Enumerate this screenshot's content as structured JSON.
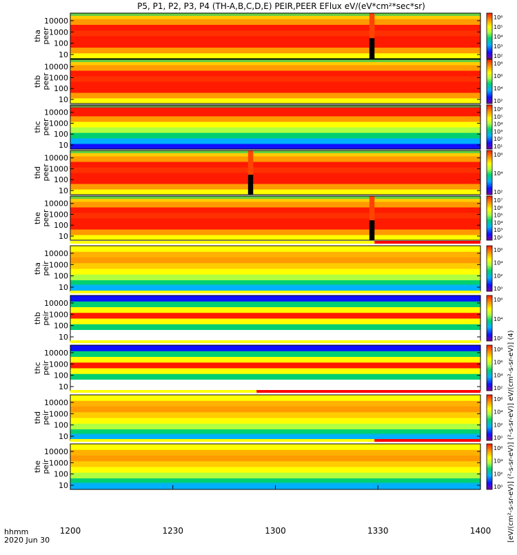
{
  "title": "P5, P1, P2, P3, P4 (TH-A,B,C,D,E) PEIR,PEER EFlux eV/(eV*cm²*sec*sr)",
  "xaxis": {
    "ticks": [
      "1200",
      "1230",
      "1300",
      "1330",
      "1400"
    ],
    "tick_minutes": [
      0,
      30,
      60,
      90,
      120
    ],
    "label_line1": "hhmm",
    "label_line2": "2020 Jun 30"
  },
  "right_label": "[eV/(cm²-s-sr-eV)] (²-s-sr-eV)] (²-s-sr-eV)] eV/(cm²-s-sr-eV)] (4)",
  "chart_data": {
    "type": "heatmap",
    "x_unit": "time (UT, hhmm)",
    "x_range": [
      "1200",
      "1400"
    ],
    "y_scale": "log",
    "y_ticks": [
      "10",
      "100",
      "1000",
      "10000"
    ],
    "y_ticks_omni_ion": [
      "10",
      "100",
      "1000",
      "10000"
    ],
    "colorscale": [
      "#7a00a8",
      "#1010ff",
      "#00b0ff",
      "#00d070",
      "#b0ff40",
      "#ffff00",
      "#ff9a00",
      "#ff1a00"
    ],
    "panels": [
      {
        "label_top": "tha",
        "label_bottom": "peer",
        "cb_ticks": [
          "10⁶",
          "10⁵",
          "10⁴",
          "10³",
          "10²"
        ],
        "data_gap_minutes": [
          [
            87.5,
            89.0
          ]
        ],
        "dominant": "red",
        "status_bar": null
      },
      {
        "label_top": "thb",
        "label_bottom": "peer",
        "cb_ticks": [
          "10⁸",
          "10⁶",
          "10⁴",
          "10²"
        ],
        "data_gap_minutes": [],
        "dominant": "red",
        "status_bar": null
      },
      {
        "label_top": "thc",
        "label_bottom": "peer",
        "cb_ticks": [
          "10⁸",
          "10⁵",
          "10⁴",
          "10³",
          "10²",
          "10¹"
        ],
        "data_gap_minutes": [],
        "dominant": "mixed",
        "status_bar": null
      },
      {
        "label_top": "thd",
        "label_bottom": "peer",
        "cb_ticks": [
          "10⁶",
          "10⁴",
          "10²"
        ],
        "data_gap_minutes": [
          [
            52.0,
            53.5
          ]
        ],
        "dominant": "red",
        "status_bar": null
      },
      {
        "label_top": "the",
        "label_bottom": "peer",
        "cb_ticks": [
          "10⁷",
          "10⁶",
          "10⁵",
          "10⁴",
          "10³",
          "10²"
        ],
        "data_gap_minutes": [
          [
            87.5,
            89.0
          ]
        ],
        "dominant": "red",
        "status_bar": null
      },
      {
        "label_top": "tha",
        "label_bottom": "peir",
        "cb_ticks": [
          "10⁶",
          "10⁴",
          "10²",
          "10⁰"
        ],
        "data_gap_minutes": [],
        "dominant": "orange",
        "status_bar": {
          "yellow_until": 89.0,
          "then": "red"
        }
      },
      {
        "label_top": "thb",
        "label_bottom": "peir",
        "cb_ticks": [
          "10⁶",
          "10⁴",
          "10²"
        ],
        "data_gap_minutes": [],
        "dominant": "band",
        "status_bar": {
          "yellow_until": 120,
          "then": "yellow"
        }
      },
      {
        "label_top": "thc",
        "label_bottom": "peir",
        "cb_ticks": [
          "10⁸",
          "10⁶",
          "10⁴",
          "10²"
        ],
        "data_gap_minutes": [],
        "dominant": "band",
        "status_bar": {
          "yellow_until": 120,
          "then": "yellow"
        }
      },
      {
        "label_top": "thd",
        "label_bottom": "peir",
        "cb_ticks": [
          "10⁶",
          "10⁴",
          "10²",
          "10⁰"
        ],
        "data_gap_minutes": [],
        "dominant": "orange",
        "status_bar": {
          "yellow_until": 54.5,
          "then": "red"
        }
      },
      {
        "label_top": "the",
        "label_bottom": "peir",
        "cb_ticks": [
          "10⁶",
          "10⁴",
          "10²",
          "10⁰"
        ],
        "data_gap_minutes": [],
        "dominant": "orange",
        "status_bar": {
          "yellow_until": 89.0,
          "then": "red"
        }
      }
    ]
  }
}
